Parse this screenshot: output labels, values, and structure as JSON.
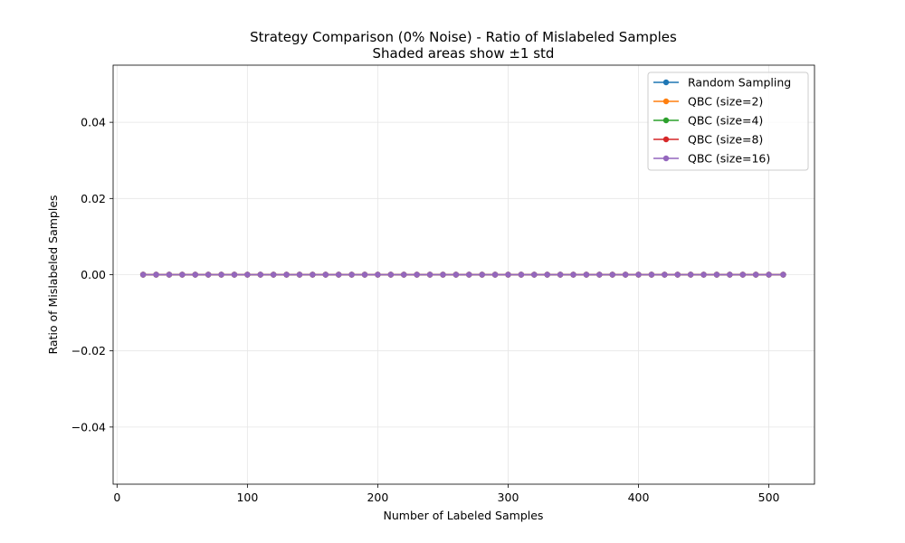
{
  "chart_data": {
    "type": "line",
    "title": "Strategy Comparison (0% Noise) - Ratio of Mislabeled Samples",
    "subtitle": "Shaded areas show ±1 std",
    "xlabel": "Number of Labeled Samples",
    "ylabel": "Ratio of Mislabeled Samples",
    "xlim": [
      -3,
      535
    ],
    "ylim": [
      -0.055,
      0.055
    ],
    "xticks": [
      0,
      100,
      200,
      300,
      400,
      500
    ],
    "yticks": [
      -0.04,
      -0.02,
      0.0,
      0.02,
      0.04
    ],
    "xtick_labels": [
      "0",
      "100",
      "200",
      "300",
      "400",
      "500"
    ],
    "ytick_labels": [
      "−0.04",
      "−0.02",
      "0.00",
      "0.02",
      "0.04"
    ],
    "grid": true,
    "legend_position": "top-right",
    "x": [
      20,
      30,
      40,
      50,
      60,
      70,
      80,
      90,
      100,
      110,
      120,
      130,
      140,
      150,
      160,
      170,
      180,
      190,
      200,
      210,
      220,
      230,
      240,
      250,
      260,
      270,
      280,
      290,
      300,
      310,
      320,
      330,
      340,
      350,
      360,
      370,
      380,
      390,
      400,
      410,
      420,
      430,
      440,
      450,
      460,
      470,
      480,
      490,
      500,
      511
    ],
    "series": [
      {
        "name": "Random Sampling",
        "color": "#1f77b4",
        "value": 0.0
      },
      {
        "name": "QBC (size=2)",
        "color": "#ff7f0e",
        "value": 0.0
      },
      {
        "name": "QBC (size=4)",
        "color": "#2ca02c",
        "value": 0.0
      },
      {
        "name": "QBC (size=8)",
        "color": "#d62728",
        "value": 0.0
      },
      {
        "name": "QBC (size=16)",
        "color": "#9467bd",
        "value": 0.0
      }
    ]
  }
}
